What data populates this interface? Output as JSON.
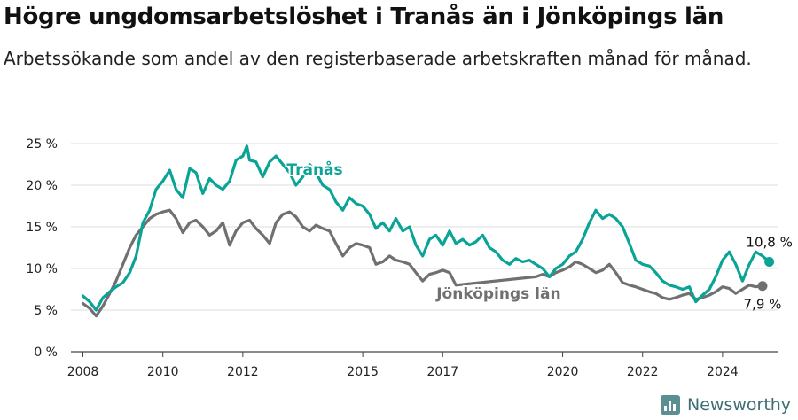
{
  "title": "Högre ungdomsarbetslöshet i Tranås än i Jönköpings län",
  "subtitle": "Arbetssökande som andel av den registerbaserade arbetskraften månad för månad.",
  "brand": "Newsworthy",
  "colors": {
    "tranas": "#0aa496",
    "jonkoping": "#707070",
    "grid": "#dddddd",
    "axis": "#444444"
  },
  "chart_data": {
    "type": "line",
    "xlim": [
      2007.7,
      2025.4
    ],
    "ylim": [
      0,
      25
    ],
    "x_ticks": [
      {
        "value": 2008,
        "label": "2008"
      },
      {
        "value": 2010,
        "label": "2010"
      },
      {
        "value": 2012,
        "label": "2012"
      },
      {
        "value": 2015,
        "label": "2015"
      },
      {
        "value": 2017,
        "label": "2017"
      },
      {
        "value": 2020,
        "label": "2020"
      },
      {
        "value": 2022,
        "label": "2022"
      },
      {
        "value": 2024,
        "label": "2024"
      }
    ],
    "y_ticks": [
      {
        "value": 0,
        "label": "0 %"
      },
      {
        "value": 5,
        "label": "5 %"
      },
      {
        "value": 10,
        "label": "10 %"
      },
      {
        "value": 15,
        "label": "15 %"
      },
      {
        "value": 20,
        "label": "20 %"
      },
      {
        "value": 25,
        "label": "25 %"
      }
    ],
    "series": [
      {
        "name": "Tranås",
        "color": "#0aa496",
        "end_label": "10,8 %",
        "points": [
          [
            2008.0,
            6.7
          ],
          [
            2008.17,
            6.0
          ],
          [
            2008.33,
            5.0
          ],
          [
            2008.5,
            6.5
          ],
          [
            2008.67,
            7.2
          ],
          [
            2008.83,
            7.8
          ],
          [
            2009.0,
            8.3
          ],
          [
            2009.17,
            9.5
          ],
          [
            2009.33,
            11.5
          ],
          [
            2009.5,
            15.5
          ],
          [
            2009.67,
            17.0
          ],
          [
            2009.83,
            19.5
          ],
          [
            2010.0,
            20.5
          ],
          [
            2010.17,
            21.8
          ],
          [
            2010.33,
            19.5
          ],
          [
            2010.5,
            18.5
          ],
          [
            2010.67,
            22.0
          ],
          [
            2010.83,
            21.5
          ],
          [
            2011.0,
            19.0
          ],
          [
            2011.17,
            20.8
          ],
          [
            2011.33,
            20.0
          ],
          [
            2011.5,
            19.5
          ],
          [
            2011.67,
            20.5
          ],
          [
            2011.83,
            23.0
          ],
          [
            2012.0,
            23.5
          ],
          [
            2012.1,
            24.7
          ],
          [
            2012.17,
            23.0
          ],
          [
            2012.33,
            22.8
          ],
          [
            2012.5,
            21.0
          ],
          [
            2012.67,
            22.8
          ],
          [
            2012.83,
            23.5
          ],
          [
            2013.0,
            22.5
          ],
          [
            2013.17,
            21.5
          ],
          [
            2013.33,
            20.0
          ],
          [
            2013.5,
            21.0
          ],
          [
            2013.67,
            22.5
          ],
          [
            2013.83,
            21.5
          ],
          [
            2014.0,
            20.0
          ],
          [
            2014.17,
            19.5
          ],
          [
            2014.33,
            18.0
          ],
          [
            2014.5,
            17.0
          ],
          [
            2014.67,
            18.5
          ],
          [
            2014.83,
            17.8
          ],
          [
            2015.0,
            17.5
          ],
          [
            2015.17,
            16.5
          ],
          [
            2015.33,
            14.8
          ],
          [
            2015.5,
            15.5
          ],
          [
            2015.67,
            14.5
          ],
          [
            2015.83,
            16.0
          ],
          [
            2016.0,
            14.5
          ],
          [
            2016.17,
            15.0
          ],
          [
            2016.33,
            12.8
          ],
          [
            2016.5,
            11.5
          ],
          [
            2016.67,
            13.5
          ],
          [
            2016.83,
            14.0
          ],
          [
            2017.0,
            12.8
          ],
          [
            2017.17,
            14.5
          ],
          [
            2017.33,
            13.0
          ],
          [
            2017.5,
            13.5
          ],
          [
            2017.67,
            12.8
          ],
          [
            2017.83,
            13.2
          ],
          [
            2018.0,
            14.0
          ],
          [
            2018.17,
            12.5
          ],
          [
            2018.33,
            12.0
          ],
          [
            2018.5,
            11.0
          ],
          [
            2018.67,
            10.5
          ],
          [
            2018.83,
            11.2
          ],
          [
            2019.0,
            10.8
          ],
          [
            2019.17,
            11.0
          ],
          [
            2019.33,
            10.5
          ],
          [
            2019.5,
            10.0
          ],
          [
            2019.67,
            9.0
          ],
          [
            2019.83,
            10.0
          ],
          [
            2020.0,
            10.5
          ],
          [
            2020.17,
            11.5
          ],
          [
            2020.33,
            12.0
          ],
          [
            2020.5,
            13.5
          ],
          [
            2020.67,
            15.5
          ],
          [
            2020.83,
            17.0
          ],
          [
            2021.0,
            16.0
          ],
          [
            2021.17,
            16.5
          ],
          [
            2021.33,
            16.0
          ],
          [
            2021.5,
            15.0
          ],
          [
            2021.67,
            13.0
          ],
          [
            2021.83,
            11.0
          ],
          [
            2022.0,
            10.5
          ],
          [
            2022.17,
            10.3
          ],
          [
            2022.33,
            9.5
          ],
          [
            2022.5,
            8.5
          ],
          [
            2022.67,
            8.0
          ],
          [
            2022.83,
            7.8
          ],
          [
            2023.0,
            7.5
          ],
          [
            2023.17,
            7.8
          ],
          [
            2023.33,
            6.0
          ],
          [
            2023.5,
            6.8
          ],
          [
            2023.67,
            7.5
          ],
          [
            2023.83,
            9.0
          ],
          [
            2024.0,
            11.0
          ],
          [
            2024.17,
            12.0
          ],
          [
            2024.33,
            10.5
          ],
          [
            2024.5,
            8.5
          ],
          [
            2024.67,
            10.5
          ],
          [
            2024.83,
            12.0
          ],
          [
            2025.0,
            11.5
          ],
          [
            2025.17,
            10.8
          ]
        ]
      },
      {
        "name": "Jönköpings län",
        "color": "#707070",
        "end_label": "7,9 %",
        "points": [
          [
            2008.0,
            5.8
          ],
          [
            2008.17,
            5.2
          ],
          [
            2008.33,
            4.3
          ],
          [
            2008.5,
            5.5
          ],
          [
            2008.67,
            7.0
          ],
          [
            2008.83,
            8.5
          ],
          [
            2009.0,
            10.5
          ],
          [
            2009.17,
            12.5
          ],
          [
            2009.33,
            14.0
          ],
          [
            2009.5,
            15.0
          ],
          [
            2009.67,
            16.0
          ],
          [
            2009.83,
            16.5
          ],
          [
            2010.0,
            16.8
          ],
          [
            2010.17,
            17.0
          ],
          [
            2010.33,
            16.0
          ],
          [
            2010.5,
            14.3
          ],
          [
            2010.67,
            15.5
          ],
          [
            2010.83,
            15.8
          ],
          [
            2011.0,
            15.0
          ],
          [
            2011.17,
            14.0
          ],
          [
            2011.33,
            14.5
          ],
          [
            2011.5,
            15.5
          ],
          [
            2011.67,
            12.8
          ],
          [
            2011.83,
            14.5
          ],
          [
            2012.0,
            15.5
          ],
          [
            2012.17,
            15.8
          ],
          [
            2012.33,
            14.8
          ],
          [
            2012.5,
            14.0
          ],
          [
            2012.67,
            13.0
          ],
          [
            2012.83,
            15.5
          ],
          [
            2013.0,
            16.5
          ],
          [
            2013.17,
            16.8
          ],
          [
            2013.33,
            16.2
          ],
          [
            2013.5,
            15.0
          ],
          [
            2013.67,
            14.5
          ],
          [
            2013.83,
            15.2
          ],
          [
            2014.0,
            14.8
          ],
          [
            2014.17,
            14.5
          ],
          [
            2014.33,
            13.0
          ],
          [
            2014.5,
            11.5
          ],
          [
            2014.67,
            12.5
          ],
          [
            2014.83,
            13.0
          ],
          [
            2015.0,
            12.8
          ],
          [
            2015.17,
            12.5
          ],
          [
            2015.33,
            10.5
          ],
          [
            2015.5,
            10.8
          ],
          [
            2015.67,
            11.5
          ],
          [
            2015.83,
            11.0
          ],
          [
            2016.0,
            10.8
          ],
          [
            2016.17,
            10.5
          ],
          [
            2016.33,
            9.5
          ],
          [
            2016.5,
            8.5
          ],
          [
            2016.67,
            9.3
          ],
          [
            2016.83,
            9.5
          ],
          [
            2017.0,
            9.8
          ],
          [
            2017.17,
            9.5
          ],
          [
            2017.33,
            8.0
          ],
          [
            2019.33,
            9.0
          ],
          [
            2019.5,
            9.3
          ],
          [
            2019.67,
            9.0
          ],
          [
            2019.83,
            9.5
          ],
          [
            2020.0,
            9.8
          ],
          [
            2020.17,
            10.2
          ],
          [
            2020.33,
            10.8
          ],
          [
            2020.5,
            10.5
          ],
          [
            2020.67,
            10.0
          ],
          [
            2020.83,
            9.5
          ],
          [
            2021.0,
            9.8
          ],
          [
            2021.17,
            10.5
          ],
          [
            2021.33,
            9.5
          ],
          [
            2021.5,
            8.3
          ],
          [
            2021.67,
            8.0
          ],
          [
            2021.83,
            7.8
          ],
          [
            2022.0,
            7.5
          ],
          [
            2022.17,
            7.2
          ],
          [
            2022.33,
            7.0
          ],
          [
            2022.5,
            6.5
          ],
          [
            2022.67,
            6.3
          ],
          [
            2022.83,
            6.5
          ],
          [
            2023.0,
            6.8
          ],
          [
            2023.17,
            7.0
          ],
          [
            2023.33,
            6.3
          ],
          [
            2023.5,
            6.5
          ],
          [
            2023.67,
            6.8
          ],
          [
            2023.83,
            7.2
          ],
          [
            2024.0,
            7.8
          ],
          [
            2024.17,
            7.6
          ],
          [
            2024.33,
            7.0
          ],
          [
            2024.5,
            7.5
          ],
          [
            2024.67,
            8.0
          ],
          [
            2024.83,
            7.8
          ],
          [
            2025.0,
            7.9
          ]
        ]
      }
    ],
    "annotations": {
      "tranas_label": "Tranås",
      "jonkoping_label": "Jönköpings län"
    }
  }
}
